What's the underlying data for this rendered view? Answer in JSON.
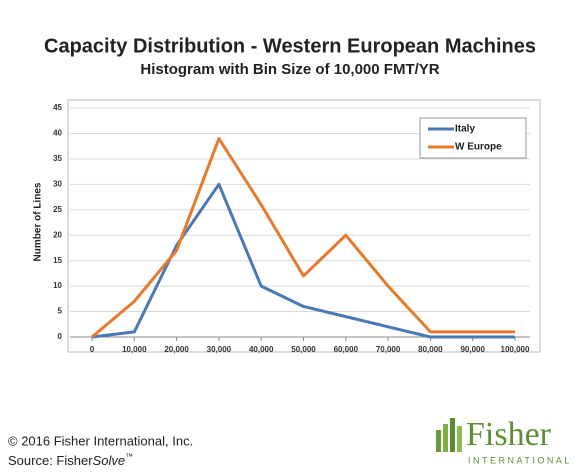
{
  "chart_data": {
    "type": "line",
    "title": "Capacity Distribution - Western European Machines",
    "subtitle": "Histogram with Bin Size of 10,000 FMT/YR",
    "y_label": "Number of Lines",
    "x": [
      0,
      10000,
      20000,
      30000,
      40000,
      50000,
      60000,
      70000,
      80000,
      90000,
      100000
    ],
    "series": [
      {
        "name": "Italy",
        "color": "#4a7ab5",
        "values": [
          0,
          1,
          18,
          30,
          10,
          6,
          4,
          2,
          0,
          0,
          0
        ]
      },
      {
        "name": "W Europe",
        "color": "#e8792b",
        "values": [
          0,
          7,
          17,
          39,
          26,
          12,
          20,
          10,
          1,
          1,
          1
        ]
      }
    ],
    "xlim": [
      0,
      100000
    ],
    "xticks": [
      {
        "value": 0,
        "label": "0"
      },
      {
        "value": 10000,
        "label": "10,000"
      },
      {
        "value": 20000,
        "label": "20,000"
      },
      {
        "value": 30000,
        "label": "30,000"
      },
      {
        "value": 40000,
        "label": "40,000"
      },
      {
        "value": 50000,
        "label": "50,000"
      },
      {
        "value": 60000,
        "label": "60,000"
      },
      {
        "value": 70000,
        "label": "70,000"
      },
      {
        "value": 80000,
        "label": "80,000"
      },
      {
        "value": 90000,
        "label": "90,000"
      },
      {
        "value": 100000,
        "label": "100,000"
      }
    ],
    "ylim": [
      0,
      45
    ],
    "yticks": [
      0,
      5,
      10,
      15,
      20,
      25,
      30,
      35,
      40,
      45
    ],
    "grid": true,
    "legend": "upper right"
  },
  "footer": {
    "copyright": "© 2016 Fisher International, Inc.",
    "source": "Source: Fisher",
    "source_product": "Solve",
    "trademark": "™"
  },
  "logo": {
    "name": "Fisher",
    "subtitle": "INTERNATIONAL"
  }
}
